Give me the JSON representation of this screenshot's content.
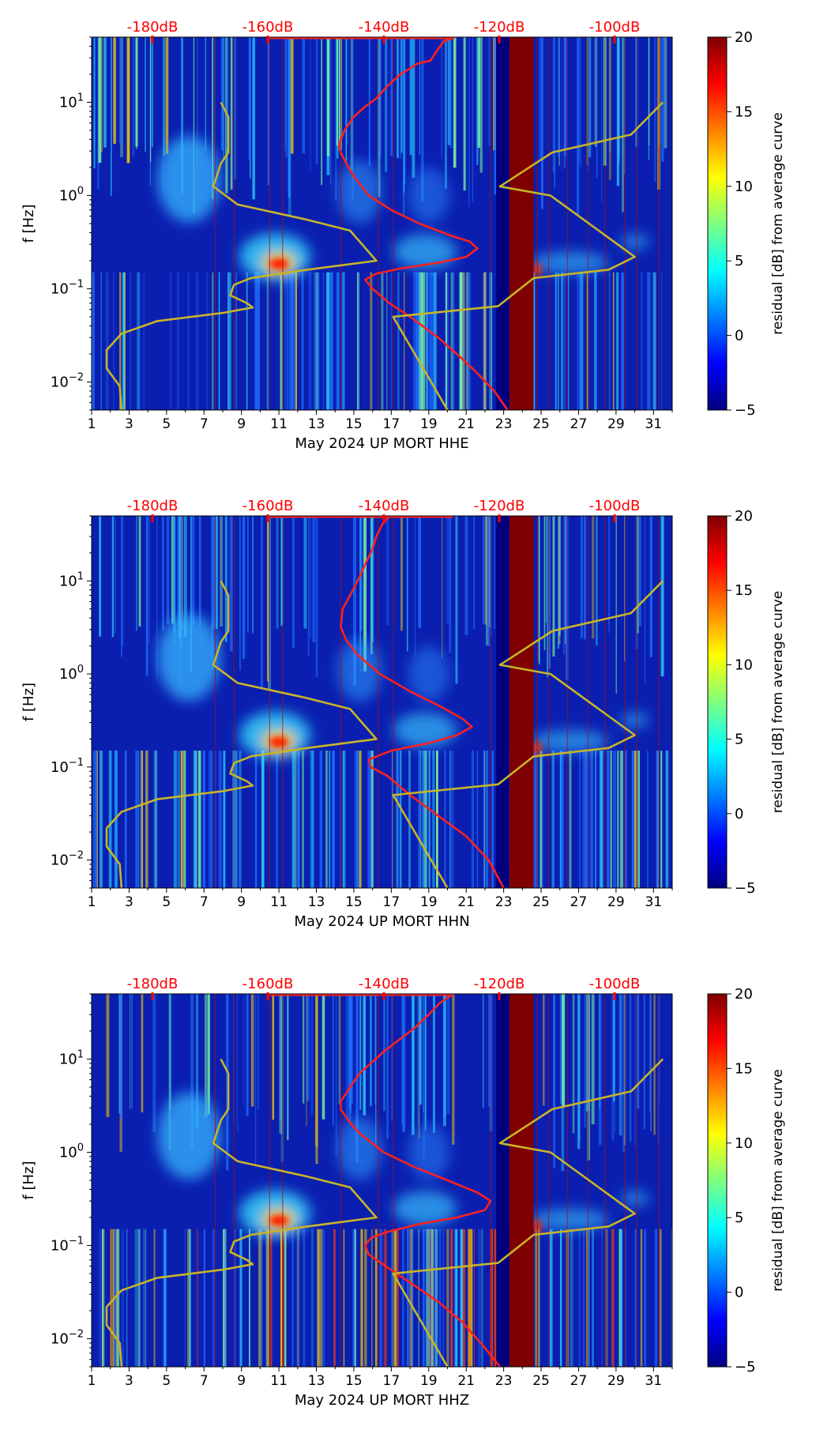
{
  "chart_data": [
    {
      "type": "heatmap",
      "xlabel": "May 2024 UP MORT  HHE",
      "ylabel": "f [Hz]",
      "x_ticks": [
        1,
        3,
        5,
        7,
        9,
        11,
        13,
        15,
        17,
        19,
        21,
        23,
        25,
        27,
        29,
        31
      ],
      "xlim": [
        1,
        32
      ],
      "ylim_hz": [
        0.005,
        50
      ],
      "y_ticks": [
        {
          "value": 10,
          "label": "10^1"
        },
        {
          "value": 1,
          "label": "10^0"
        },
        {
          "value": 0.1,
          "label": "10^-1"
        },
        {
          "value": 0.01,
          "label": "10^-2"
        }
      ],
      "top_axis": {
        "labels": [
          "-180dB",
          "-160dB",
          "-140dB",
          "-120dB",
          "-100dB"
        ],
        "color": "#ff0000"
      },
      "colorbar": {
        "label": "residual [dB] from average curve",
        "min": -5,
        "max": 20,
        "ticks": [
          -5,
          0,
          5,
          10,
          15,
          20
        ]
      },
      "gap_bands": [
        {
          "from": 23.3,
          "to": 24.6
        }
      ],
      "vertical_event_lines": [
        7.6,
        8.6,
        10.5,
        11.2,
        14.3,
        16.3,
        17.1,
        22.3,
        24.8,
        25.4,
        26.4,
        27.5,
        28.4,
        29.5,
        30.1,
        31.3
      ],
      "series": [
        {
          "name": "average PSD (red)",
          "color": "#ff2020",
          "points": [
            [
              20.4,
              50
            ],
            [
              19.8,
              45
            ],
            [
              19.4,
              35
            ],
            [
              19.1,
              28
            ],
            [
              18.4,
              26
            ],
            [
              17.5,
              20
            ],
            [
              16.8,
              15
            ],
            [
              16.2,
              11
            ],
            [
              15.6,
              9
            ],
            [
              15.0,
              7
            ],
            [
              14.5,
              5
            ],
            [
              14.2,
              3.5
            ],
            [
              14.3,
              2.9
            ],
            [
              14.6,
              2.2
            ],
            [
              15.0,
              1.6
            ],
            [
              15.8,
              1.0
            ],
            [
              17.0,
              0.7
            ],
            [
              18.5,
              0.5
            ],
            [
              20.2,
              0.37
            ],
            [
              21.2,
              0.32
            ],
            [
              21.6,
              0.27
            ],
            [
              21.0,
              0.22
            ],
            [
              19.5,
              0.19
            ],
            [
              17.5,
              0.165
            ],
            [
              16.2,
              0.145
            ],
            [
              15.6,
              0.125
            ],
            [
              16.0,
              0.1
            ],
            [
              16.9,
              0.07
            ],
            [
              18.0,
              0.05
            ],
            [
              19.5,
              0.03
            ],
            [
              20.5,
              0.02
            ],
            [
              21.5,
              0.013
            ],
            [
              22.5,
              0.008
            ],
            [
              23.2,
              0.005
            ]
          ]
        },
        {
          "name": "noise model (yellow)",
          "color": "#c8b428",
          "points": [
            [
              7.9,
              10
            ],
            [
              8.3,
              7
            ],
            [
              8.3,
              2.9
            ],
            [
              7.9,
              2.2
            ],
            [
              7.5,
              1.25
            ],
            [
              8.8,
              0.8
            ],
            [
              12.5,
              0.55
            ],
            [
              14.8,
              0.42
            ],
            [
              16.2,
              0.2
            ],
            [
              12.5,
              0.16
            ],
            [
              9.5,
              0.13
            ],
            [
              8.6,
              0.11
            ],
            [
              8.4,
              0.085
            ],
            [
              9.3,
              0.07
            ],
            [
              9.6,
              0.063
            ],
            [
              8.0,
              0.055
            ],
            [
              4.5,
              0.045
            ],
            [
              2.6,
              0.033
            ],
            [
              1.8,
              0.022
            ],
            [
              1.8,
              0.014
            ],
            [
              2.5,
              0.009
            ],
            [
              2.6,
              0.005
            ]
          ]
        },
        {
          "name": "noise model right (yellow)",
          "color": "#c8b428",
          "points": [
            [
              20.0,
              0.005
            ],
            [
              17.1,
              0.05
            ],
            [
              22.7,
              0.065
            ],
            [
              24.6,
              0.13
            ],
            [
              28.6,
              0.16
            ],
            [
              30.0,
              0.22
            ],
            [
              25.5,
              1.0
            ],
            [
              22.8,
              1.25
            ],
            [
              25.6,
              2.9
            ],
            [
              29.8,
              4.5
            ],
            [
              31.5,
              10
            ]
          ]
        }
      ]
    },
    {
      "type": "heatmap",
      "xlabel": "May 2024 UP MORT  HHN",
      "ylabel": "f [Hz]",
      "x_ticks": [
        1,
        3,
        5,
        7,
        9,
        11,
        13,
        15,
        17,
        19,
        21,
        23,
        25,
        27,
        29,
        31
      ],
      "xlim": [
        1,
        32
      ],
      "ylim_hz": [
        0.005,
        50
      ],
      "y_ticks": [
        {
          "value": 10,
          "label": "10^1"
        },
        {
          "value": 1,
          "label": "10^0"
        },
        {
          "value": 0.1,
          "label": "10^-1"
        },
        {
          "value": 0.01,
          "label": "10^-2"
        }
      ],
      "top_axis": {
        "labels": [
          "-180dB",
          "-160dB",
          "-140dB",
          "-120dB",
          "-100dB"
        ],
        "color": "#ff0000"
      },
      "colorbar": {
        "label": "residual [dB] from average curve",
        "min": -5,
        "max": 20,
        "ticks": [
          -5,
          0,
          5,
          10,
          15,
          20
        ]
      },
      "gap_bands": [
        {
          "from": 23.3,
          "to": 24.6
        }
      ],
      "vertical_event_lines": [
        7.6,
        8.6,
        10.5,
        11.2,
        14.3,
        16.3,
        17.1,
        22.3,
        24.8,
        25.4,
        26.4,
        27.5,
        28.4,
        29.5,
        30.1,
        31.3
      ],
      "series": [
        {
          "name": "average PSD (red)",
          "color": "#ff2020",
          "points": [
            [
              16.9,
              50
            ],
            [
              16.5,
              40
            ],
            [
              16.2,
              30
            ],
            [
              16.0,
              22
            ],
            [
              15.6,
              15
            ],
            [
              15.2,
              10
            ],
            [
              14.8,
              7
            ],
            [
              14.4,
              5
            ],
            [
              14.3,
              3.2
            ],
            [
              14.6,
              2.3
            ],
            [
              15.2,
              1.6
            ],
            [
              16.4,
              1.0
            ],
            [
              18.0,
              0.65
            ],
            [
              19.6,
              0.45
            ],
            [
              20.8,
              0.33
            ],
            [
              21.3,
              0.27
            ],
            [
              20.5,
              0.22
            ],
            [
              19.0,
              0.18
            ],
            [
              17.0,
              0.15
            ],
            [
              15.8,
              0.12
            ],
            [
              15.9,
              0.1
            ],
            [
              16.8,
              0.08
            ],
            [
              18.0,
              0.05
            ],
            [
              19.5,
              0.03
            ],
            [
              21.0,
              0.018
            ],
            [
              22.2,
              0.01
            ],
            [
              23.0,
              0.005
            ]
          ]
        },
        {
          "name": "noise model (yellow)",
          "color": "#c8b428",
          "points": [
            [
              7.9,
              10
            ],
            [
              8.3,
              7
            ],
            [
              8.3,
              2.9
            ],
            [
              7.9,
              2.2
            ],
            [
              7.5,
              1.25
            ],
            [
              8.8,
              0.8
            ],
            [
              12.5,
              0.55
            ],
            [
              14.8,
              0.42
            ],
            [
              16.2,
              0.2
            ],
            [
              12.5,
              0.16
            ],
            [
              9.5,
              0.13
            ],
            [
              8.6,
              0.11
            ],
            [
              8.4,
              0.085
            ],
            [
              9.3,
              0.07
            ],
            [
              9.6,
              0.063
            ],
            [
              8.0,
              0.055
            ],
            [
              4.5,
              0.045
            ],
            [
              2.6,
              0.033
            ],
            [
              1.8,
              0.022
            ],
            [
              1.8,
              0.014
            ],
            [
              2.5,
              0.009
            ],
            [
              2.6,
              0.005
            ]
          ]
        },
        {
          "name": "noise model right (yellow)",
          "color": "#c8b428",
          "points": [
            [
              20.0,
              0.005
            ],
            [
              17.1,
              0.05
            ],
            [
              22.7,
              0.065
            ],
            [
              24.6,
              0.13
            ],
            [
              28.6,
              0.16
            ],
            [
              30.0,
              0.22
            ],
            [
              25.5,
              1.0
            ],
            [
              22.8,
              1.25
            ],
            [
              25.6,
              2.9
            ],
            [
              29.8,
              4.5
            ],
            [
              31.5,
              10
            ]
          ]
        }
      ]
    },
    {
      "type": "heatmap",
      "xlabel": "May 2024 UP MORT  HHZ",
      "ylabel": "f [Hz]",
      "x_ticks": [
        1,
        3,
        5,
        7,
        9,
        11,
        13,
        15,
        17,
        19,
        21,
        23,
        25,
        27,
        29,
        31
      ],
      "xlim": [
        1,
        32
      ],
      "ylim_hz": [
        0.005,
        50
      ],
      "y_ticks": [
        {
          "value": 10,
          "label": "10^1"
        },
        {
          "value": 1,
          "label": "10^0"
        },
        {
          "value": 0.1,
          "label": "10^-1"
        },
        {
          "value": 0.01,
          "label": "10^-2"
        }
      ],
      "top_axis": {
        "labels": [
          "-180dB",
          "-160dB",
          "-140dB",
          "-120dB",
          "-100dB"
        ],
        "color": "#ff0000"
      },
      "colorbar": {
        "label": "residual [dB] from average curve",
        "min": -5,
        "max": 20,
        "ticks": [
          -5,
          0,
          5,
          10,
          15,
          20
        ]
      },
      "gap_bands": [
        {
          "from": 23.3,
          "to": 24.6
        }
      ],
      "vertical_event_lines": [
        7.6,
        8.6,
        10.5,
        11.2,
        14.3,
        16.3,
        17.1,
        22.3,
        24.8,
        25.4,
        26.4,
        27.5,
        28.4,
        29.5,
        30.1,
        31.3
      ],
      "series": [
        {
          "name": "average PSD (red)",
          "color": "#ff2020",
          "points": [
            [
              20.3,
              50
            ],
            [
              19.6,
              40
            ],
            [
              19.0,
              30
            ],
            [
              18.3,
              22
            ],
            [
              17.4,
              16
            ],
            [
              16.6,
              12
            ],
            [
              15.9,
              9
            ],
            [
              15.3,
              7
            ],
            [
              14.8,
              5
            ],
            [
              14.3,
              3.5
            ],
            [
              14.3,
              2.9
            ],
            [
              14.7,
              2.2
            ],
            [
              15.3,
              1.6
            ],
            [
              16.6,
              1.0
            ],
            [
              18.2,
              0.7
            ],
            [
              20.0,
              0.5
            ],
            [
              21.6,
              0.37
            ],
            [
              22.3,
              0.3
            ],
            [
              22.0,
              0.24
            ],
            [
              20.5,
              0.2
            ],
            [
              18.5,
              0.17
            ],
            [
              16.8,
              0.14
            ],
            [
              15.9,
              0.12
            ],
            [
              15.6,
              0.1
            ],
            [
              15.8,
              0.08
            ],
            [
              16.7,
              0.06
            ],
            [
              18.0,
              0.04
            ],
            [
              19.5,
              0.025
            ],
            [
              20.8,
              0.015
            ],
            [
              22.0,
              0.008
            ],
            [
              22.8,
              0.005
            ]
          ]
        },
        {
          "name": "noise model (yellow)",
          "color": "#c8b428",
          "points": [
            [
              7.9,
              10
            ],
            [
              8.3,
              7
            ],
            [
              8.3,
              2.9
            ],
            [
              7.9,
              2.2
            ],
            [
              7.5,
              1.25
            ],
            [
              8.8,
              0.8
            ],
            [
              12.5,
              0.55
            ],
            [
              14.8,
              0.42
            ],
            [
              16.2,
              0.2
            ],
            [
              12.5,
              0.16
            ],
            [
              9.5,
              0.13
            ],
            [
              8.6,
              0.11
            ],
            [
              8.4,
              0.085
            ],
            [
              9.3,
              0.07
            ],
            [
              9.6,
              0.063
            ],
            [
              8.0,
              0.055
            ],
            [
              4.5,
              0.045
            ],
            [
              2.6,
              0.033
            ],
            [
              1.8,
              0.022
            ],
            [
              1.8,
              0.014
            ],
            [
              2.5,
              0.009
            ],
            [
              2.6,
              0.005
            ]
          ]
        },
        {
          "name": "noise model right (yellow)",
          "color": "#c8b428",
          "points": [
            [
              20.0,
              0.005
            ],
            [
              17.1,
              0.05
            ],
            [
              22.7,
              0.065
            ],
            [
              24.6,
              0.13
            ],
            [
              28.6,
              0.16
            ],
            [
              30.0,
              0.22
            ],
            [
              25.5,
              1.0
            ],
            [
              22.8,
              1.25
            ],
            [
              25.6,
              2.9
            ],
            [
              29.8,
              4.5
            ],
            [
              31.5,
              10
            ]
          ]
        }
      ]
    }
  ]
}
